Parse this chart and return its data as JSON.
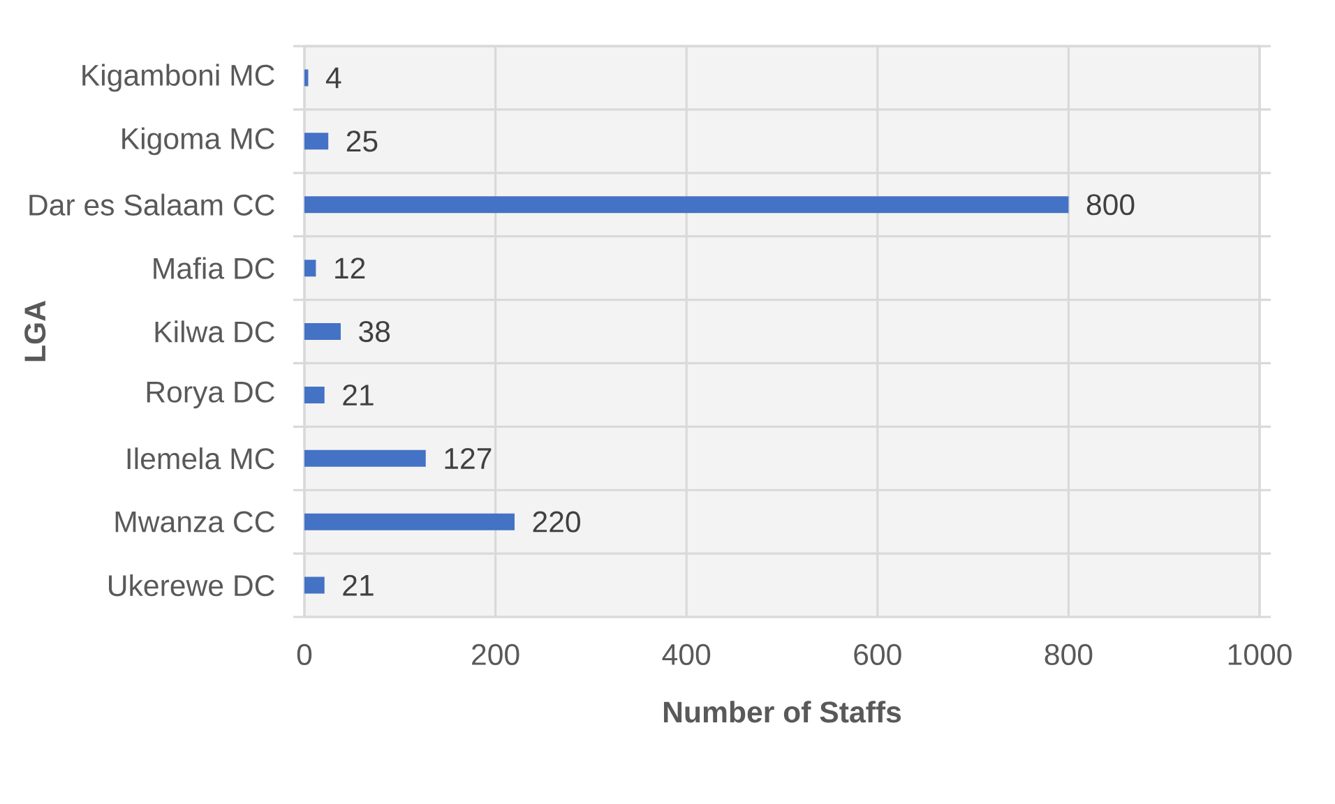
{
  "chart_data": {
    "type": "bar",
    "orientation": "horizontal",
    "xlabel": "Number of Staffs",
    "ylabel": "LGA",
    "categories": [
      "Kigamboni MC",
      "Kigoma MC",
      "Dar es Salaam CC",
      "Mafia DC",
      "Kilwa DC",
      "Rorya DC",
      "Ilemela MC",
      "Mwanza CC",
      "Ukerewe DC"
    ],
    "values": [
      4,
      25,
      800,
      12,
      38,
      21,
      127,
      220,
      21
    ],
    "color": "#4472c4",
    "xlim": [
      0,
      1000
    ],
    "xticks": [
      0,
      200,
      400,
      600,
      800,
      1000
    ],
    "grid": true,
    "data_labels": true
  }
}
